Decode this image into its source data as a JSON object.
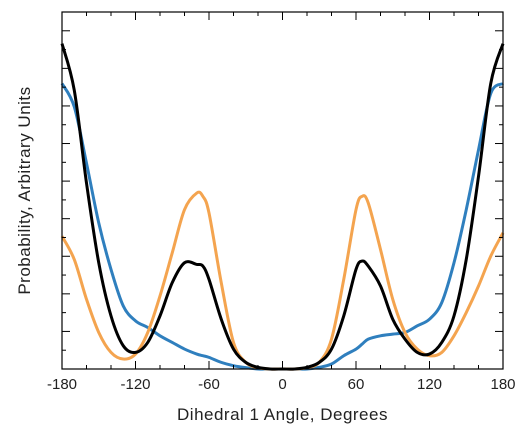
{
  "chart_data": {
    "type": "line",
    "title": "",
    "xlabel": "Dihedral 1 Angle, Degrees",
    "ylabel": "Probability, Arbitrary Units",
    "xlim": [
      -180,
      180
    ],
    "ylim": [
      0,
      1
    ],
    "y_ticks_labeled": false,
    "grid": false,
    "legend": "none",
    "x_ticks": [
      -180,
      -120,
      -60,
      0,
      60,
      120,
      180
    ],
    "x_tick_labels": [
      "-180",
      "-120",
      "-60",
      "0",
      "60",
      "120",
      "180"
    ],
    "x": [
      -180,
      -170,
      -160,
      -150,
      -140,
      -130,
      -120,
      -110,
      -100,
      -90,
      -80,
      -70,
      -65,
      -60,
      -50,
      -40,
      -30,
      -20,
      -10,
      0,
      10,
      20,
      30,
      40,
      50,
      60,
      65,
      70,
      80,
      90,
      100,
      110,
      120,
      130,
      140,
      150,
      160,
      170,
      180
    ],
    "series": [
      {
        "color": "#000000",
        "values": [
          0.98,
          0.84,
          0.56,
          0.32,
          0.16,
          0.07,
          0.05,
          0.08,
          0.16,
          0.26,
          0.32,
          0.315,
          0.31,
          0.27,
          0.15,
          0.06,
          0.02,
          0.005,
          0.0,
          0.0,
          0.0,
          0.005,
          0.02,
          0.06,
          0.16,
          0.3,
          0.325,
          0.31,
          0.25,
          0.15,
          0.09,
          0.05,
          0.045,
          0.08,
          0.16,
          0.33,
          0.58,
          0.86,
          0.98
        ]
      },
      {
        "color": "#2f7fbe",
        "values": [
          0.86,
          0.79,
          0.62,
          0.44,
          0.3,
          0.19,
          0.145,
          0.125,
          0.1,
          0.08,
          0.06,
          0.045,
          0.04,
          0.035,
          0.02,
          0.01,
          0.004,
          0.0,
          0.0,
          0.0,
          0.0,
          0.0,
          0.005,
          0.015,
          0.04,
          0.06,
          0.075,
          0.09,
          0.1,
          0.105,
          0.11,
          0.13,
          0.15,
          0.2,
          0.32,
          0.48,
          0.66,
          0.83,
          0.86
        ]
      },
      {
        "color": "#f4a44f",
        "values": [
          0.4,
          0.33,
          0.21,
          0.11,
          0.05,
          0.03,
          0.045,
          0.11,
          0.22,
          0.35,
          0.48,
          0.53,
          0.52,
          0.47,
          0.26,
          0.08,
          0.02,
          0.004,
          0.0,
          0.0,
          0.0,
          0.004,
          0.02,
          0.09,
          0.27,
          0.48,
          0.52,
          0.5,
          0.36,
          0.21,
          0.11,
          0.06,
          0.04,
          0.05,
          0.1,
          0.17,
          0.25,
          0.34,
          0.41
        ]
      }
    ]
  }
}
